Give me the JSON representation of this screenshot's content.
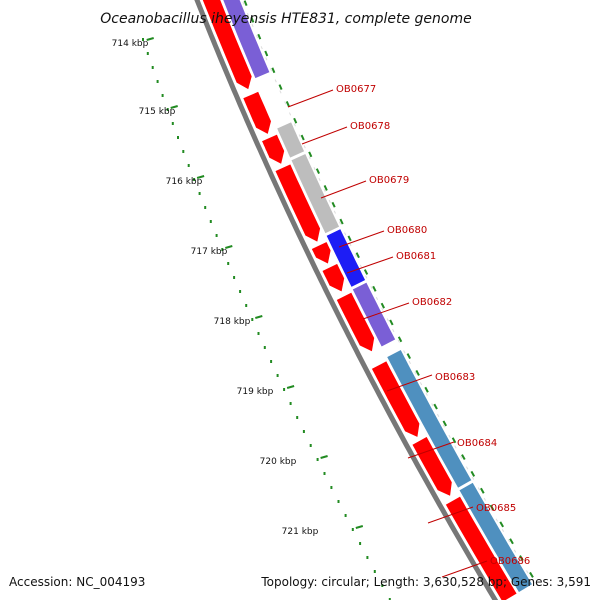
{
  "title": "Oceanobacillus iheyensis HTE831, complete genome",
  "accession": "Accession: NC_004193",
  "topology": "Topology: circular; Length: 3,630,528 bp; Genes: 3,591",
  "colors": {
    "forward": "#ff0000",
    "backbone": "#777777",
    "tick": "#228b22",
    "label": "#c00000",
    "gene_purple": "#7a5fd6",
    "gene_gray": "#bdbdbd",
    "gene_blue": "#1d1df5",
    "gene_steel": "#4f90bf"
  },
  "kbp_labels": [
    "714 kbp",
    "715 kbp",
    "716 kbp",
    "717 kbp",
    "718 kbp",
    "719 kbp",
    "720 kbp",
    "721 kbp"
  ],
  "gene_labels": [
    "OB0677",
    "OB0678",
    "OB0679",
    "OB0680",
    "OB0681",
    "OB0682",
    "OB0683",
    "OB0684",
    "OB0685",
    "OB0686"
  ]
}
